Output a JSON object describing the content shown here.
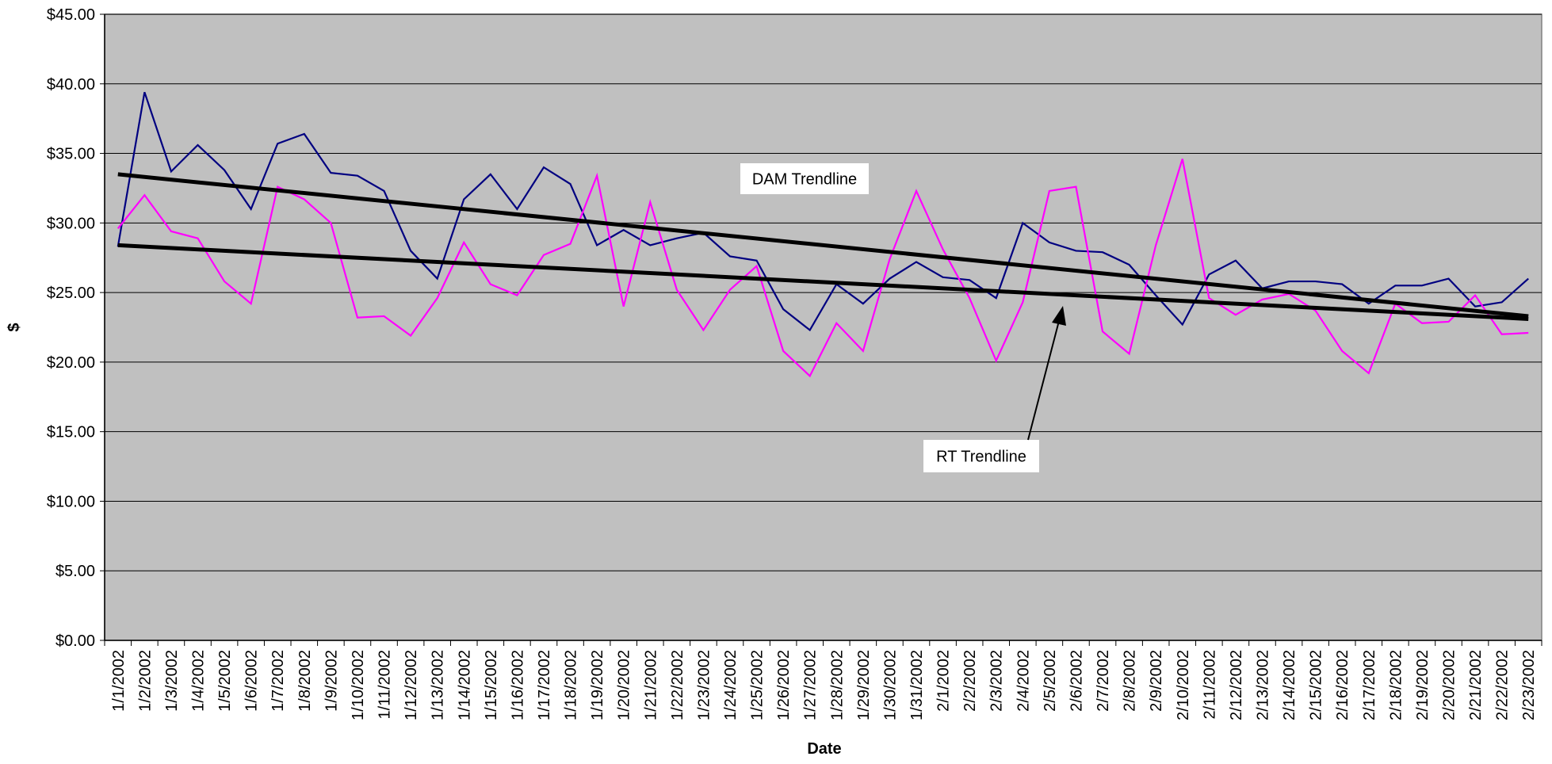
{
  "chart_data": {
    "type": "line",
    "x_label": "Date",
    "y_label": "$",
    "categories": [
      "1/1/2002",
      "1/2/2002",
      "1/3/2002",
      "1/4/2002",
      "1/5/2002",
      "1/6/2002",
      "1/7/2002",
      "1/8/2002",
      "1/9/2002",
      "1/10/2002",
      "1/11/2002",
      "1/12/2002",
      "1/13/2002",
      "1/14/2002",
      "1/15/2002",
      "1/16/2002",
      "1/17/2002",
      "1/18/2002",
      "1/19/2002",
      "1/20/2002",
      "1/21/2002",
      "1/22/2002",
      "1/23/2002",
      "1/24/2002",
      "1/25/2002",
      "1/26/2002",
      "1/27/2002",
      "1/28/2002",
      "1/29/2002",
      "1/30/2002",
      "1/31/2002",
      "2/1/2002",
      "2/2/2002",
      "2/3/2002",
      "2/4/2002",
      "2/5/2002",
      "2/6/2002",
      "2/7/2002",
      "2/8/2002",
      "2/9/2002",
      "2/10/2002",
      "2/11/2002",
      "2/12/2002",
      "2/13/2002",
      "2/14/2002",
      "2/15/2002",
      "2/16/2002",
      "2/17/2002",
      "2/18/2002",
      "2/19/2002",
      "2/20/2002",
      "2/21/2002",
      "2/22/2002",
      "2/23/2002"
    ],
    "series": [
      {
        "color": "#000080",
        "values": [
          28.3,
          39.4,
          33.7,
          35.6,
          33.8,
          31.0,
          35.7,
          36.4,
          33.6,
          33.4,
          32.3,
          28.0,
          26.0,
          31.7,
          33.5,
          31.0,
          34.0,
          32.8,
          28.4,
          29.5,
          28.4,
          28.9,
          29.3,
          27.6,
          27.3,
          23.8,
          22.3,
          25.6,
          24.2,
          26.0,
          27.2,
          26.1,
          25.9,
          24.6,
          30.0,
          28.6,
          28.0,
          27.9,
          27.0,
          24.8,
          22.7,
          26.3,
          27.3,
          25.3,
          25.8,
          25.8,
          25.6,
          24.2,
          25.5,
          25.5,
          26.0,
          24.0,
          24.3,
          26.0
        ]
      },
      {
        "color": "#ff00ff",
        "values": [
          29.6,
          32.0,
          29.4,
          28.9,
          25.8,
          24.2,
          32.6,
          31.7,
          30.0,
          23.2,
          23.3,
          21.9,
          24.6,
          28.6,
          25.6,
          24.8,
          27.7,
          28.5,
          33.4,
          24.0,
          31.5,
          25.2,
          22.3,
          25.2,
          26.9,
          20.8,
          19.0,
          22.8,
          20.8,
          27.4,
          32.3,
          28.1,
          24.6,
          20.1,
          24.3,
          32.3,
          32.6,
          22.2,
          20.6,
          28.4,
          34.6,
          24.6,
          23.4,
          24.5,
          24.9,
          23.7,
          20.8,
          19.2,
          24.2,
          22.8,
          22.9,
          24.8,
          22.0,
          22.1
        ]
      }
    ],
    "trendlines": [
      {
        "label": "DAM Trendline",
        "start": 33.5,
        "end": 23.3
      },
      {
        "label": "RT Trendline",
        "start": 28.4,
        "end": 23.1
      }
    ],
    "ylim": [
      0,
      45
    ],
    "yticks": [
      {
        "value": 0,
        "label": "$0.00"
      },
      {
        "value": 5,
        "label": "$5.00"
      },
      {
        "value": 10,
        "label": "$10.00"
      },
      {
        "value": 15,
        "label": "$15.00"
      },
      {
        "value": 20,
        "label": "$20.00"
      },
      {
        "value": 25,
        "label": "$25.00"
      },
      {
        "value": 30,
        "label": "$30.00"
      },
      {
        "value": 35,
        "label": "$35.00"
      },
      {
        "value": 40,
        "label": "$40.00"
      },
      {
        "value": 45,
        "label": "$45.00"
      }
    ],
    "grid": true,
    "plot_color": "#c0c0c0"
  }
}
